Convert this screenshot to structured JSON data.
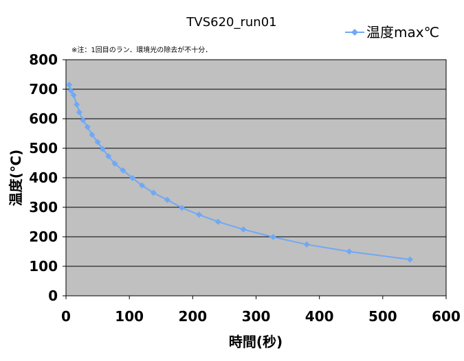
{
  "chart_data": {
    "type": "line",
    "title": "TVS620_run01",
    "note": "※注：1回目のラン．環境光の除去が不十分．",
    "xlabel": "時間(秒)",
    "ylabel": "温度(℃)",
    "xlim": [
      0,
      600
    ],
    "ylim": [
      0,
      800
    ],
    "x_ticks": [
      "0",
      "100",
      "200",
      "300",
      "400",
      "500",
      "600"
    ],
    "y_ticks": [
      "0",
      "100",
      "200",
      "300",
      "400",
      "500",
      "600",
      "700",
      "800"
    ],
    "grid": true,
    "legend_position": "top-right",
    "plot_background": "#c0c0c0",
    "series": [
      {
        "name": "温度max℃",
        "color": "#6fa8f5",
        "marker": "diamond",
        "x": [
          5,
          8,
          12,
          17,
          21,
          27,
          34,
          41,
          50,
          58,
          67,
          77,
          90,
          105,
          120,
          138,
          160,
          183,
          210,
          240,
          280,
          327,
          380,
          447,
          543
        ],
        "y": [
          715,
          695,
          680,
          648,
          622,
          595,
          572,
          546,
          521,
          497,
          473,
          448,
          425,
          399,
          374,
          349,
          325,
          298,
          275,
          251,
          225,
          199,
          174,
          150,
          123
        ]
      }
    ]
  }
}
